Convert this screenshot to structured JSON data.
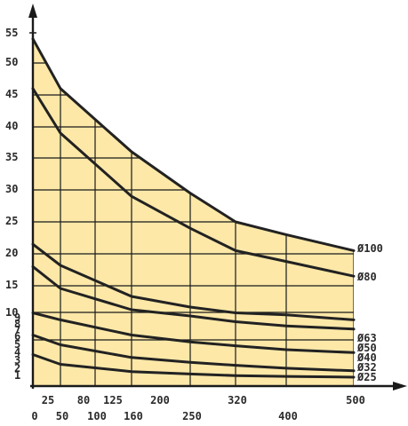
{
  "chart_data": {
    "type": "line",
    "title": "",
    "xlabel": "",
    "ylabel": "",
    "x": [
      0,
      25,
      50,
      80,
      100,
      125,
      160,
      200,
      250,
      320,
      400,
      500
    ],
    "x_tick_labels": [
      "0",
      "25",
      "50",
      "80",
      "100",
      "125",
      "160",
      "200",
      "250",
      "320",
      "400",
      "500"
    ],
    "y_tick_labels": [
      "1",
      "2",
      "3",
      "4",
      "5",
      "6",
      "7",
      "8",
      "9",
      "10",
      "15",
      "20",
      "25",
      "30",
      "35",
      "40",
      "45",
      "50",
      "55"
    ],
    "series": [
      {
        "name": "Ø100",
        "x": [
          0,
          50,
          160,
          250,
          320,
          400,
          500
        ],
        "values": [
          54,
          46,
          36,
          29.5,
          25,
          23,
          20.5
        ]
      },
      {
        "name": "Ø80",
        "x": [
          0,
          50,
          160,
          250,
          320,
          400,
          500
        ],
        "values": [
          46,
          39,
          29,
          24,
          20.5,
          18.8,
          16.5
        ]
      },
      {
        "name": "Ø63",
        "x": [
          0,
          50,
          160,
          250,
          320,
          400,
          500
        ],
        "values": [
          21.5,
          18.2,
          13,
          11,
          9.5,
          8.7,
          7.8
        ]
      },
      {
        "name": "Ø50",
        "x": [
          0,
          50,
          160,
          250,
          320,
          400,
          500
        ],
        "values": [
          18,
          14.5,
          10.5,
          8.5,
          7.5,
          6.8,
          6.2
        ]
      },
      {
        "name": "Ø40",
        "x": [
          0,
          50,
          160,
          250,
          320,
          400,
          500
        ],
        "values": [
          9.5,
          7.8,
          5.5,
          4.8,
          4.4,
          4,
          3.7
        ]
      },
      {
        "name": "Ø32",
        "x": [
          0,
          50,
          160,
          250,
          320,
          400,
          500
        ],
        "values": [
          5.5,
          4.5,
          3.2,
          2.7,
          2.4,
          2.1,
          1.8
        ]
      },
      {
        "name": "Ø25",
        "x": [
          0,
          50,
          160,
          250,
          320,
          400,
          500
        ],
        "values": [
          3.5,
          2.5,
          1.7,
          1.4,
          1.2,
          1.1,
          1
        ]
      }
    ],
    "xlim": [
      0,
      500
    ],
    "ylim": [
      0,
      55
    ],
    "grid": true,
    "legend": "labels at right end of curves",
    "colors": {
      "fill": "#fde8a8",
      "line": "#222222",
      "grid": "#1a1a1a",
      "text": "#2a2a2a"
    }
  }
}
